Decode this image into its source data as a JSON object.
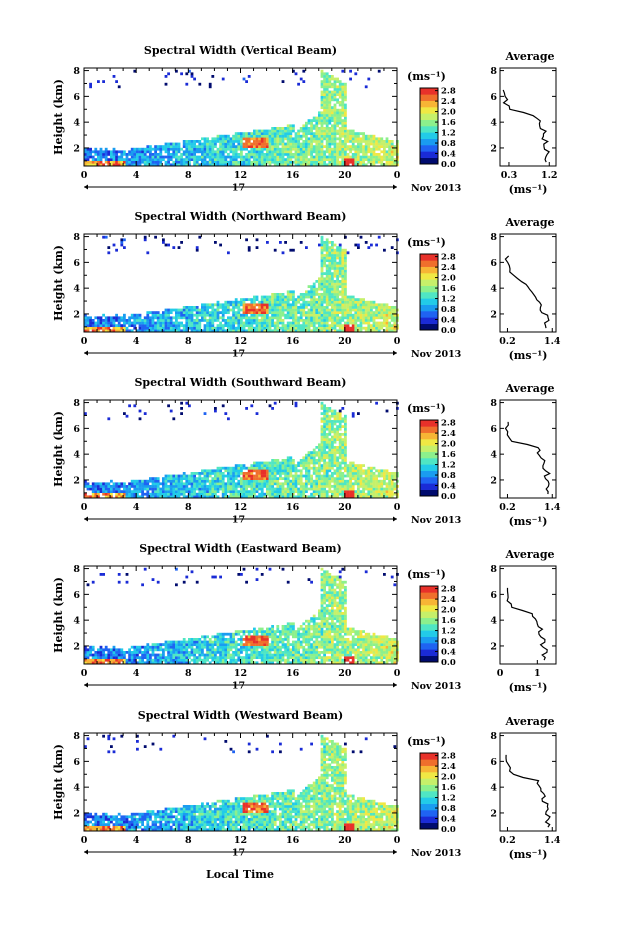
{
  "figure": {
    "xlabel": "Local Time",
    "ylabel": "Height (km)",
    "colorbar_unit": "(ms⁻¹)",
    "date_label": "Nov 2013",
    "day_label": "17",
    "average_title": "Average",
    "average_xlabel": "(ms⁻¹)",
    "colorbar_colors": [
      "#000b6e",
      "#1a2bd6",
      "#1f63f2",
      "#1a9cf0",
      "#22cbe8",
      "#4fe6c4",
      "#8cf08c",
      "#c6f06a",
      "#f0e844",
      "#f7b535",
      "#ef6f2c",
      "#e8312a"
    ]
  },
  "chart_data": [
    {
      "type": "heatmap",
      "title": "Spectral Width (Vertical Beam)",
      "x_ticks": [
        "0",
        "4",
        "8",
        "12",
        "16",
        "20",
        "0"
      ],
      "x_range_hours": [
        0,
        24
      ],
      "y_ticks": [
        "2",
        "4",
        "6",
        "8"
      ],
      "y_range_km": [
        0.6,
        8.2
      ],
      "colorbar_ticks": [
        "0.0",
        "0.4",
        "0.8",
        "1.2",
        "1.6",
        "2.0",
        "2.4",
        "2.8"
      ],
      "colorbar_range": [
        0,
        2.9
      ],
      "average": {
        "x_ticks": [
          "0.3",
          "1.2"
        ],
        "x_range": [
          0.1,
          1.35
        ],
        "y_ticks": [
          "2",
          "4",
          "6",
          "8"
        ],
        "heights_km": [
          0.9,
          1.3,
          1.7,
          2.1,
          2.5,
          2.9,
          3.3,
          3.7,
          4.1,
          4.5,
          5.0,
          5.5,
          6.0,
          6.5
        ],
        "width_ms": [
          1.15,
          1.12,
          1.18,
          1.08,
          1.15,
          1.05,
          1.1,
          0.98,
          1.0,
          0.85,
          0.3,
          0.22,
          0.25,
          0.2
        ]
      }
    },
    {
      "type": "heatmap",
      "title": "Spectral Width (Northward Beam)",
      "x_ticks": [
        "0",
        "4",
        "8",
        "12",
        "16",
        "20",
        "0"
      ],
      "x_range_hours": [
        0,
        24
      ],
      "y_ticks": [
        "2",
        "4",
        "6",
        "8"
      ],
      "y_range_km": [
        0.6,
        8.2
      ],
      "colorbar_ticks": [
        "0.0",
        "0.4",
        "0.8",
        "1.2",
        "1.6",
        "2.0",
        "2.4",
        "2.8"
      ],
      "colorbar_range": [
        0,
        2.9
      ],
      "average": {
        "x_ticks": [
          "0.2",
          "1.4"
        ],
        "x_range": [
          0.0,
          1.5
        ],
        "y_ticks": [
          "2",
          "4",
          "6",
          "8"
        ],
        "heights_km": [
          0.9,
          1.3,
          1.7,
          2.1,
          2.5,
          2.9,
          3.3,
          3.7,
          4.1,
          4.5,
          5.0,
          5.5,
          6.0,
          6.5
        ],
        "width_ms": [
          1.25,
          1.2,
          1.3,
          1.15,
          1.1,
          1.05,
          0.95,
          0.85,
          0.75,
          0.6,
          0.35,
          0.25,
          0.2,
          0.2
        ]
      }
    },
    {
      "type": "heatmap",
      "title": "Spectral Width (Southward Beam)",
      "x_ticks": [
        "0",
        "4",
        "8",
        "12",
        "16",
        "20",
        "0"
      ],
      "x_range_hours": [
        0,
        24
      ],
      "y_ticks": [
        "2",
        "4",
        "6",
        "8"
      ],
      "y_range_km": [
        0.6,
        8.2
      ],
      "colorbar_ticks": [
        "0.0",
        "0.4",
        "0.8",
        "1.2",
        "1.6",
        "2.0",
        "2.4",
        "2.8"
      ],
      "colorbar_range": [
        0,
        2.9
      ],
      "average": {
        "x_ticks": [
          "0.2",
          "1.4"
        ],
        "x_range": [
          0.0,
          1.5
        ],
        "y_ticks": [
          "2",
          "4",
          "6",
          "8"
        ],
        "heights_km": [
          0.9,
          1.3,
          1.7,
          2.1,
          2.5,
          2.9,
          3.3,
          3.7,
          4.1,
          4.5,
          5.0,
          5.5,
          6.0,
          6.5
        ],
        "width_ms": [
          1.3,
          1.25,
          1.35,
          1.2,
          1.3,
          1.15,
          1.2,
          1.1,
          1.0,
          1.05,
          0.3,
          0.2,
          0.18,
          0.2
        ]
      }
    },
    {
      "type": "heatmap",
      "title": "Spectral Width (Eastward Beam)",
      "x_ticks": [
        "0",
        "4",
        "8",
        "12",
        "16",
        "20",
        "0"
      ],
      "x_range_hours": [
        0,
        24
      ],
      "y_ticks": [
        "2",
        "4",
        "6",
        "8"
      ],
      "y_range_km": [
        0.6,
        8.2
      ],
      "colorbar_ticks": [
        "0.0",
        "0.4",
        "0.8",
        "1.2",
        "1.6",
        "2.0",
        "2.4",
        "2.8"
      ],
      "colorbar_range": [
        0,
        2.9
      ],
      "average": {
        "x_ticks": [
          "0",
          "1"
        ],
        "x_range": [
          0.0,
          1.5
        ],
        "y_ticks": [
          "2",
          "4",
          "6",
          "8"
        ],
        "heights_km": [
          0.9,
          1.3,
          1.7,
          2.1,
          2.5,
          2.9,
          3.3,
          3.7,
          4.1,
          4.5,
          5.0,
          5.5,
          6.0,
          6.5
        ],
        "width_ms": [
          1.2,
          1.15,
          1.25,
          1.1,
          1.2,
          1.05,
          1.1,
          1.0,
          0.95,
          0.9,
          0.3,
          0.22,
          0.2,
          0.2
        ]
      }
    },
    {
      "type": "heatmap",
      "title": "Spectral Width (Westward Beam)",
      "x_ticks": [
        "0",
        "4",
        "8",
        "12",
        "16",
        "20",
        "0"
      ],
      "x_range_hours": [
        0,
        24
      ],
      "y_ticks": [
        "2",
        "4",
        "6",
        "8"
      ],
      "y_range_km": [
        0.6,
        8.2
      ],
      "colorbar_ticks": [
        "0.0",
        "0.4",
        "0.8",
        "1.2",
        "1.6",
        "2.0",
        "2.4",
        "2.8"
      ],
      "colorbar_range": [
        0,
        2.9
      ],
      "average": {
        "x_ticks": [
          "0.2",
          "1.4"
        ],
        "x_range": [
          0.0,
          1.5
        ],
        "y_ticks": [
          "2",
          "4",
          "6",
          "8"
        ],
        "heights_km": [
          0.9,
          1.3,
          1.7,
          2.1,
          2.5,
          2.9,
          3.3,
          3.7,
          4.1,
          4.5,
          5.0,
          5.5,
          6.0,
          6.5
        ],
        "width_ms": [
          1.3,
          1.25,
          1.35,
          1.2,
          1.3,
          1.15,
          1.2,
          1.1,
          1.05,
          1.0,
          0.35,
          0.25,
          0.2,
          0.18
        ]
      }
    }
  ]
}
